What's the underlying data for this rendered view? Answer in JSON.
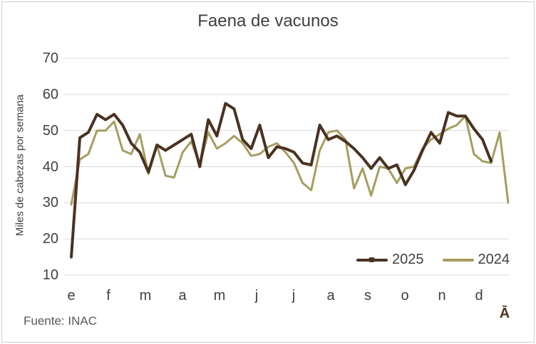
{
  "title": "Faena de vacunos",
  "source": "Fuente: INAC",
  "y_axis": {
    "title": "Miles de cabezas por semana",
    "ticks": [
      70,
      60,
      50,
      40,
      30,
      20,
      10
    ]
  },
  "x_axis": {
    "months": [
      "e",
      "f",
      "m",
      "a",
      "m",
      "j",
      "j",
      "a",
      "s",
      "o",
      "n",
      "d"
    ],
    "extra_label": "Ā"
  },
  "legend": [
    {
      "label": "2025",
      "color": "#4a3221"
    },
    {
      "label": "2024",
      "color": "#a69d60"
    }
  ],
  "colors": {
    "text": "#404040",
    "source_text": "#595959",
    "gridline": "#d9d9d9",
    "series_2025": "#4a3221",
    "series_2024": "#a69d60"
  },
  "chart_data": {
    "type": "line",
    "title": "Faena de vacunos",
    "xlabel": "",
    "ylabel": "Miles de cabezas por semana",
    "x_unit": "week of year",
    "ylim": [
      10,
      70
    ],
    "yticks": [
      10,
      20,
      30,
      40,
      50,
      60,
      70
    ],
    "grid": "horizontal",
    "legend_position": "inside-bottom-right",
    "series": [
      {
        "name": "2025",
        "color": "#4a3221",
        "line_width": 4,
        "values": [
          15,
          48,
          49.5,
          54.5,
          53,
          54.5,
          51.5,
          46.5,
          44,
          38.5,
          46,
          44.5,
          46,
          47.5,
          49,
          40,
          53,
          48.5,
          57.5,
          56,
          47.5,
          45,
          51.5,
          42.5,
          45.5,
          45,
          44,
          41,
          40.5,
          51.5,
          47.5,
          48.5,
          47,
          45,
          42.5,
          39.5,
          42.5,
          39.5,
          40.5,
          35,
          39,
          44.5,
          49.5,
          46.5,
          55,
          54,
          54,
          50.5,
          47.5,
          41.5
        ]
      },
      {
        "name": "2024",
        "color": "#a69d60",
        "line_width": 3,
        "values": [
          29.5,
          42,
          43.5,
          50,
          50,
          52.5,
          44.5,
          43.5,
          49,
          38,
          46,
          37.5,
          37,
          44,
          47,
          40.5,
          49.5,
          45,
          46.5,
          48.5,
          46.5,
          43,
          43.5,
          45.5,
          46.5,
          44,
          41,
          35.5,
          33.5,
          44.5,
          49.5,
          50,
          47.5,
          34,
          39.5,
          32,
          40,
          39.5,
          35.5,
          39.5,
          40,
          45,
          47.5,
          49,
          50.5,
          51.5,
          54,
          43.5,
          41.5,
          41,
          49.5,
          30
        ]
      }
    ]
  }
}
